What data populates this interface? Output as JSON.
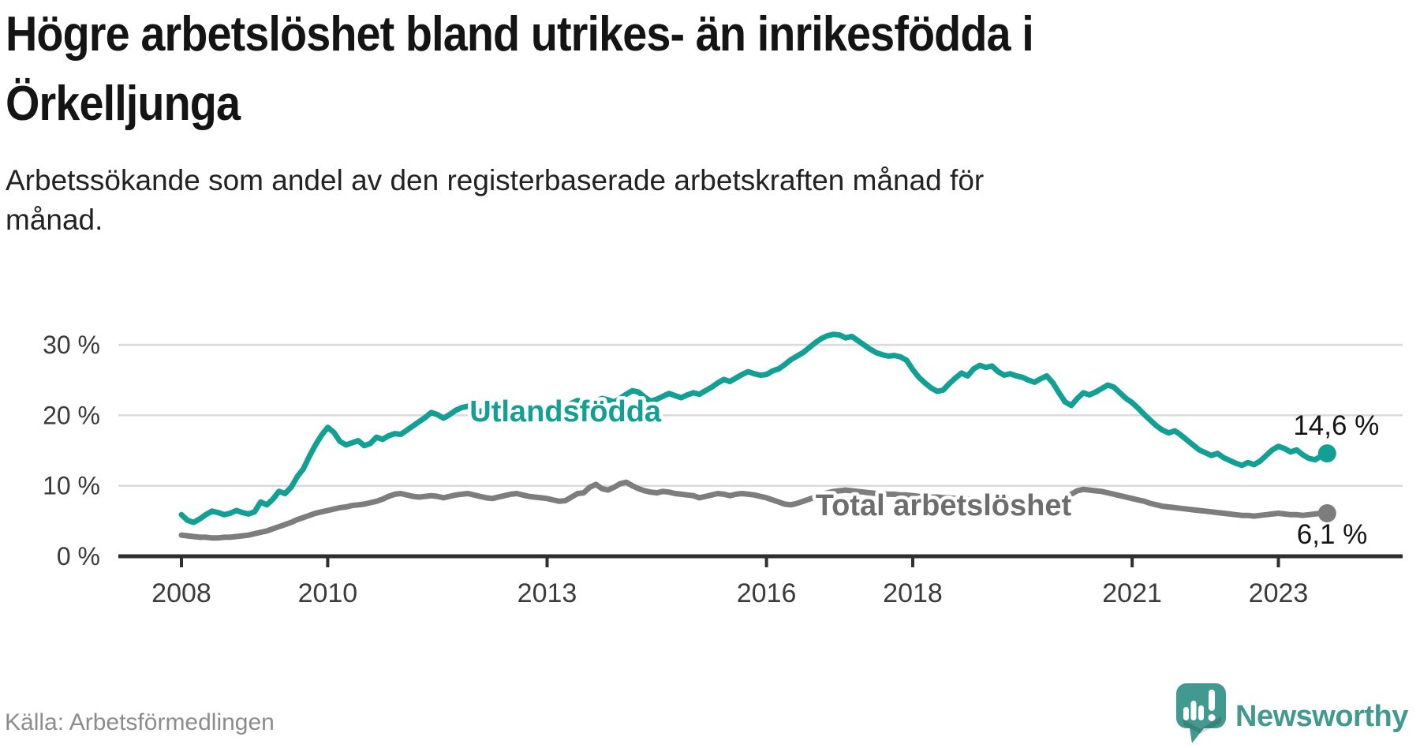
{
  "header": {
    "title_lines": [
      "Högre arbetslöshet bland utrikes- än inrikesfödda i",
      "Örkelljunga"
    ],
    "subtitle_lines": [
      "Arbetssökande som andel av den registerbaserade arbetskraften månad för",
      "månad."
    ]
  },
  "footer": {
    "source": "Källa: Arbetsförmedlingen",
    "brand": "Newsworthy"
  },
  "colors": {
    "accent_teal": "#13a094",
    "series_gray": "#7d7d7d",
    "series_gray_label": "#6d6d6d",
    "grid": "#dadada",
    "axis": "#2f2f2f",
    "tick_text": "#3b3b3b",
    "end_label_text": "#141414",
    "source_text": "#8c8c8c",
    "brand_teal": "#42998f"
  },
  "chart_data": {
    "type": "line",
    "title": "Högre arbetslöshet bland utrikes- än inrikesfödda i Örkelljunga",
    "subtitle": "Arbetssökande som andel av den registerbaserade arbetskraften månad för månad.",
    "unit": "%",
    "grid": "horizontal",
    "legend_position": "inline",
    "x_start_year": 2008,
    "x_start_month": 1,
    "x_end_year": 2023,
    "x_end_month": 9,
    "points_per_year": 12,
    "xlim": [
      2007.15,
      2024.7
    ],
    "ylim": [
      0,
      33.5
    ],
    "x_tick_years": [
      2008,
      2010,
      2013,
      2016,
      2018,
      2021,
      2023
    ],
    "x_tick_labels": [
      "2008",
      "2010",
      "2013",
      "2016",
      "2018",
      "2021",
      "2023"
    ],
    "y_ticks": [
      {
        "value": 0,
        "label": "0 %"
      },
      {
        "value": 10,
        "label": "10 %"
      },
      {
        "value": 20,
        "label": "20 %"
      },
      {
        "value": 30,
        "label": "30 %"
      }
    ],
    "series": [
      {
        "name": "Utlandsfödda",
        "slug": "utlandsfodda",
        "color": "#13a094",
        "label_color": "#13a094",
        "end_label": "14,6 %",
        "end_value": 14.6,
        "inline_label": {
          "text": "Utlandsfödda",
          "anchor_year": 2013.25,
          "anchor_value": 20.6
        },
        "values": [
          5.9,
          5.1,
          4.8,
          5.3,
          5.9,
          6.4,
          6.2,
          5.9,
          6.1,
          6.5,
          6.2,
          6.0,
          6.3,
          7.7,
          7.3,
          8.1,
          9.2,
          8.9,
          9.8,
          11.3,
          12.4,
          14.2,
          15.8,
          17.2,
          18.3,
          17.6,
          16.3,
          15.8,
          16.1,
          16.4,
          15.7,
          16.0,
          16.9,
          16.6,
          17.1,
          17.4,
          17.3,
          17.9,
          18.5,
          19.1,
          19.7,
          20.4,
          20.1,
          19.6,
          20.1,
          20.7,
          21.1,
          21.3,
          20.9,
          20.5,
          21.0,
          21.4,
          21.2,
          20.9,
          21.1,
          21.4,
          21.2,
          21.0,
          21.2,
          21.1,
          20.4,
          20.2,
          20.7,
          21.3,
          21.7,
          22.1,
          21.9,
          21.6,
          22.0,
          22.4,
          22.2,
          21.9,
          22.4,
          23.0,
          23.5,
          23.3,
          22.6,
          22.0,
          22.3,
          22.7,
          23.1,
          22.8,
          22.5,
          22.9,
          23.2,
          23.0,
          23.5,
          24.0,
          24.6,
          25.1,
          24.8,
          25.3,
          25.8,
          26.2,
          25.9,
          25.7,
          25.8,
          26.3,
          26.6,
          27.2,
          27.9,
          28.4,
          28.9,
          29.6,
          30.3,
          30.9,
          31.3,
          31.5,
          31.4,
          31.0,
          31.2,
          30.6,
          30.0,
          29.4,
          28.9,
          28.6,
          28.4,
          28.5,
          28.3,
          27.8,
          26.5,
          25.4,
          24.6,
          23.9,
          23.4,
          23.6,
          24.5,
          25.3,
          26.0,
          25.6,
          26.6,
          27.1,
          26.8,
          27.0,
          26.2,
          25.7,
          25.9,
          25.6,
          25.4,
          25.0,
          24.7,
          25.2,
          25.6,
          24.6,
          23.2,
          21.9,
          21.4,
          22.4,
          23.2,
          22.9,
          23.3,
          23.8,
          24.3,
          24.0,
          23.2,
          22.4,
          21.8,
          21.0,
          20.1,
          19.3,
          18.5,
          17.9,
          17.5,
          17.8,
          17.2,
          16.5,
          15.8,
          15.1,
          14.7,
          14.3,
          14.6,
          14.0,
          13.6,
          13.2,
          12.9,
          13.3,
          13.0,
          13.5,
          14.3,
          15.1,
          15.6,
          15.3,
          14.8,
          15.1,
          14.4,
          13.9,
          13.7,
          14.2,
          14.6
        ]
      },
      {
        "name": "Total arbetslöshet",
        "slug": "total-arbetsloshet",
        "color": "#7d7d7d",
        "label_color": "#6d6d6d",
        "end_label": "6,1 %",
        "end_value": 6.1,
        "inline_label": {
          "text": "Total arbetslöshet",
          "anchor_year": 2018.42,
          "anchor_value": 7.28
        },
        "values": [
          3.0,
          2.9,
          2.8,
          2.7,
          2.7,
          2.6,
          2.6,
          2.7,
          2.7,
          2.8,
          2.9,
          3.0,
          3.2,
          3.4,
          3.6,
          3.9,
          4.2,
          4.5,
          4.8,
          5.2,
          5.5,
          5.8,
          6.1,
          6.3,
          6.5,
          6.7,
          6.9,
          7.0,
          7.2,
          7.3,
          7.4,
          7.6,
          7.8,
          8.1,
          8.5,
          8.8,
          8.9,
          8.7,
          8.5,
          8.4,
          8.5,
          8.6,
          8.5,
          8.3,
          8.5,
          8.7,
          8.8,
          8.9,
          8.7,
          8.5,
          8.3,
          8.2,
          8.4,
          8.6,
          8.8,
          8.9,
          8.7,
          8.5,
          8.4,
          8.3,
          8.2,
          8.0,
          7.8,
          7.9,
          8.4,
          8.9,
          9.0,
          9.8,
          10.2,
          9.6,
          9.4,
          9.8,
          10.3,
          10.5,
          10.0,
          9.6,
          9.3,
          9.1,
          9.0,
          9.2,
          9.1,
          8.9,
          8.8,
          8.7,
          8.6,
          8.3,
          8.5,
          8.7,
          8.9,
          8.8,
          8.6,
          8.8,
          8.9,
          8.8,
          8.7,
          8.5,
          8.3,
          8.0,
          7.7,
          7.4,
          7.3,
          7.5,
          7.8,
          8.1,
          8.4,
          8.7,
          9.0,
          9.2,
          9.3,
          9.4,
          9.3,
          9.2,
          9.1,
          9.0,
          8.9,
          8.9,
          8.8,
          8.8,
          8.7,
          8.7,
          8.6,
          8.5,
          8.5,
          8.4,
          8.4,
          8.3,
          8.3,
          8.2,
          8.2,
          8.1,
          8.1,
          8.0,
          8.0,
          7.9,
          7.9,
          7.8,
          7.8,
          7.8,
          7.7,
          7.7,
          7.6,
          7.6,
          7.7,
          7.8,
          8.0,
          8.3,
          8.8,
          9.3,
          9.5,
          9.4,
          9.3,
          9.2,
          9.0,
          8.8,
          8.6,
          8.4,
          8.2,
          8.0,
          7.8,
          7.5,
          7.3,
          7.1,
          7.0,
          6.9,
          6.8,
          6.7,
          6.6,
          6.5,
          6.4,
          6.3,
          6.2,
          6.1,
          6.0,
          5.9,
          5.8,
          5.8,
          5.7,
          5.8,
          5.9,
          6.0,
          6.1,
          6.0,
          5.9,
          5.9,
          5.8,
          5.9,
          6.0,
          6.1,
          6.1
        ]
      }
    ]
  }
}
